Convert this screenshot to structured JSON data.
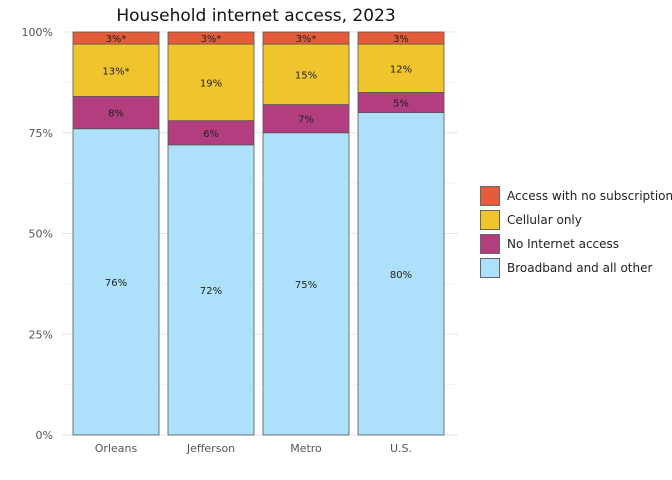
{
  "chart_data": {
    "type": "bar",
    "stacked": true,
    "title": "Household internet access, 2023",
    "categories": [
      "Orleans",
      "Jefferson",
      "Metro",
      "U.S."
    ],
    "yticks": [
      "0%",
      "25%",
      "50%",
      "75%",
      "100%"
    ],
    "ylim": [
      0,
      100
    ],
    "grid": true,
    "legend_position": "right",
    "series": [
      {
        "name": "Broadband and all other",
        "color": "#ade0fa",
        "values": [
          76,
          72,
          75,
          80
        ],
        "labels": [
          "76%",
          "72%",
          "75%",
          "80%"
        ]
      },
      {
        "name": "No Internet access",
        "color": "#b23d7f",
        "values": [
          8,
          6,
          7,
          5
        ],
        "labels": [
          "8%",
          "6%",
          "7%",
          "5%"
        ]
      },
      {
        "name": "Cellular only",
        "color": "#f0c42c",
        "values": [
          13,
          19,
          15,
          12
        ],
        "labels": [
          "13%*",
          "19%",
          "15%",
          "12%"
        ]
      },
      {
        "name": "Access with no subscription",
        "color": "#e45c3a",
        "values": [
          3,
          3,
          3,
          3
        ],
        "labels": [
          "3%*",
          "3%*",
          "3%*",
          "3%"
        ]
      }
    ],
    "legend_order": [
      "Access with no subscription",
      "Cellular only",
      "No Internet access",
      "Broadband and all other"
    ]
  }
}
